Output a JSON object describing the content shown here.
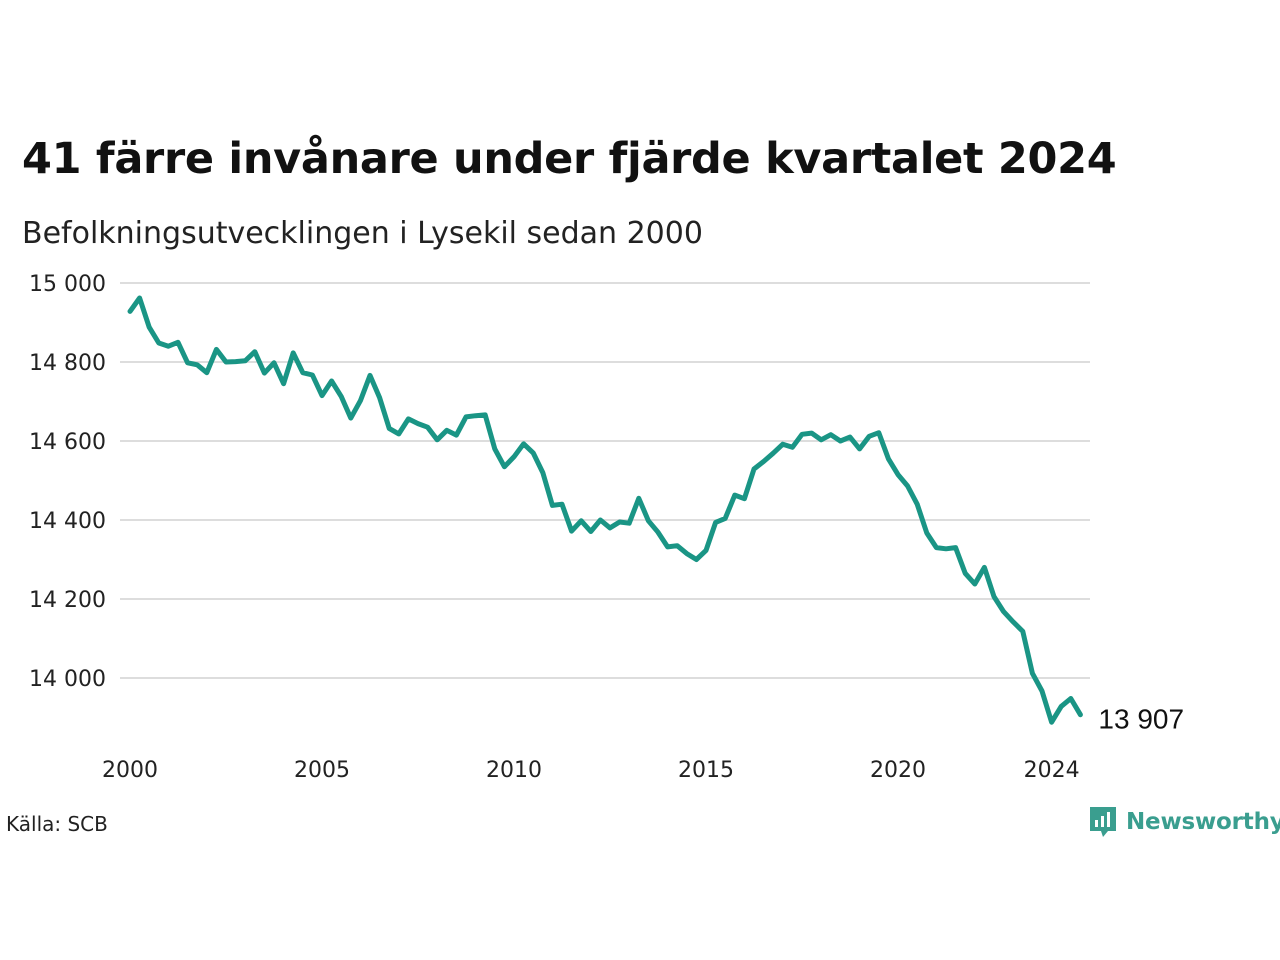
{
  "header": {
    "title": "41 färre invånare under fjärde kvartalet 2024",
    "subtitle": "Befolkningsutvecklingen i Lysekil sedan 2000"
  },
  "footer": {
    "source": "Källa: SCB",
    "brand": "Newsworthy",
    "brand_icon": "newsworthy-logo-icon"
  },
  "colors": {
    "line": "#1a9585",
    "grid": "#dddddd",
    "brand": "#3a9e8f"
  },
  "chart_data": {
    "type": "line",
    "title": "41 färre invånare under fjärde kvartalet 2024",
    "subtitle": "Befolkningsutvecklingen i Lysekil sedan 2000",
    "xlabel": "",
    "ylabel": "",
    "ylim": [
      13880,
      15000
    ],
    "xlim": [
      2000,
      2025
    ],
    "grid": true,
    "legend": "none",
    "yticks": [
      14000,
      14200,
      14400,
      14600,
      14800,
      15000
    ],
    "ytick_labels": [
      "14 000",
      "14 200",
      "14 400",
      "14 600",
      "14 800",
      "15 000"
    ],
    "xticks": [
      2000,
      2005,
      2010,
      2015,
      2020,
      2024
    ],
    "xtick_labels": [
      "2000",
      "2005",
      "2010",
      "2015",
      "2020",
      "2024"
    ],
    "end_label": "13 907",
    "series": [
      {
        "x": [
          2000.0,
          2000.25,
          2000.5,
          2000.75,
          2001.0,
          2001.25,
          2001.5,
          2001.75,
          2002.0,
          2002.25,
          2002.5,
          2002.75,
          2003.0,
          2003.25,
          2003.5,
          2003.75,
          2004.0,
          2004.25,
          2004.5,
          2004.75,
          2005.0,
          2005.25,
          2005.5,
          2005.75,
          2006.0,
          2006.25,
          2006.5,
          2006.75,
          2007.0,
          2007.25,
          2007.5,
          2007.75,
          2008.0,
          2008.25,
          2008.5,
          2008.75,
          2009.0,
          2009.25,
          2009.5,
          2009.75,
          2010.0,
          2010.25,
          2010.5,
          2010.75,
          2011.0,
          2011.25,
          2011.5,
          2011.75,
          2012.0,
          2012.25,
          2012.5,
          2012.75,
          2013.0,
          2013.25,
          2013.5,
          2013.75,
          2014.0,
          2014.25,
          2014.5,
          2014.75,
          2015.0,
          2015.25,
          2015.5,
          2015.75,
          2016.0,
          2016.25,
          2016.5,
          2016.75,
          2017.0,
          2017.25,
          2017.5,
          2017.75,
          2018.0,
          2018.25,
          2018.5,
          2018.75,
          2019.0,
          2019.25,
          2019.5,
          2019.75,
          2020.0,
          2020.25,
          2020.5,
          2020.75,
          2021.0,
          2021.25,
          2021.5,
          2021.75,
          2022.0,
          2022.25,
          2022.5,
          2022.75,
          2023.0,
          2023.25,
          2023.5,
          2023.75,
          2024.0,
          2024.25,
          2024.5,
          2024.75
        ],
        "values": [
          14928,
          14962,
          14888,
          14848,
          14840,
          14850,
          14798,
          14793,
          14773,
          14832,
          14800,
          14801,
          14803,
          14826,
          14772,
          14798,
          14745,
          14823,
          14773,
          14767,
          14715,
          14752,
          14713,
          14658,
          14702,
          14766,
          14710,
          14632,
          14618,
          14656,
          14644,
          14635,
          14603,
          14627,
          14615,
          14661,
          14664,
          14666,
          14580,
          14535,
          14560,
          14593,
          14570,
          14520,
          14437,
          14440,
          14372,
          14398,
          14371,
          14400,
          14380,
          14395,
          14392,
          14455,
          14398,
          14369,
          14332,
          14335,
          14315,
          14300,
          14323,
          14394,
          14404,
          14463,
          14454,
          14529,
          14548,
          14569,
          14592,
          14584,
          14617,
          14620,
          14603,
          14616,
          14600,
          14610,
          14580,
          14612,
          14621,
          14555,
          14515,
          14486,
          14440,
          14367,
          14330,
          14327,
          14330,
          14265,
          14238,
          14280,
          14206,
          14168,
          14142,
          14118,
          14012,
          13967,
          13888,
          13928,
          13948,
          13907
        ]
      }
    ]
  }
}
